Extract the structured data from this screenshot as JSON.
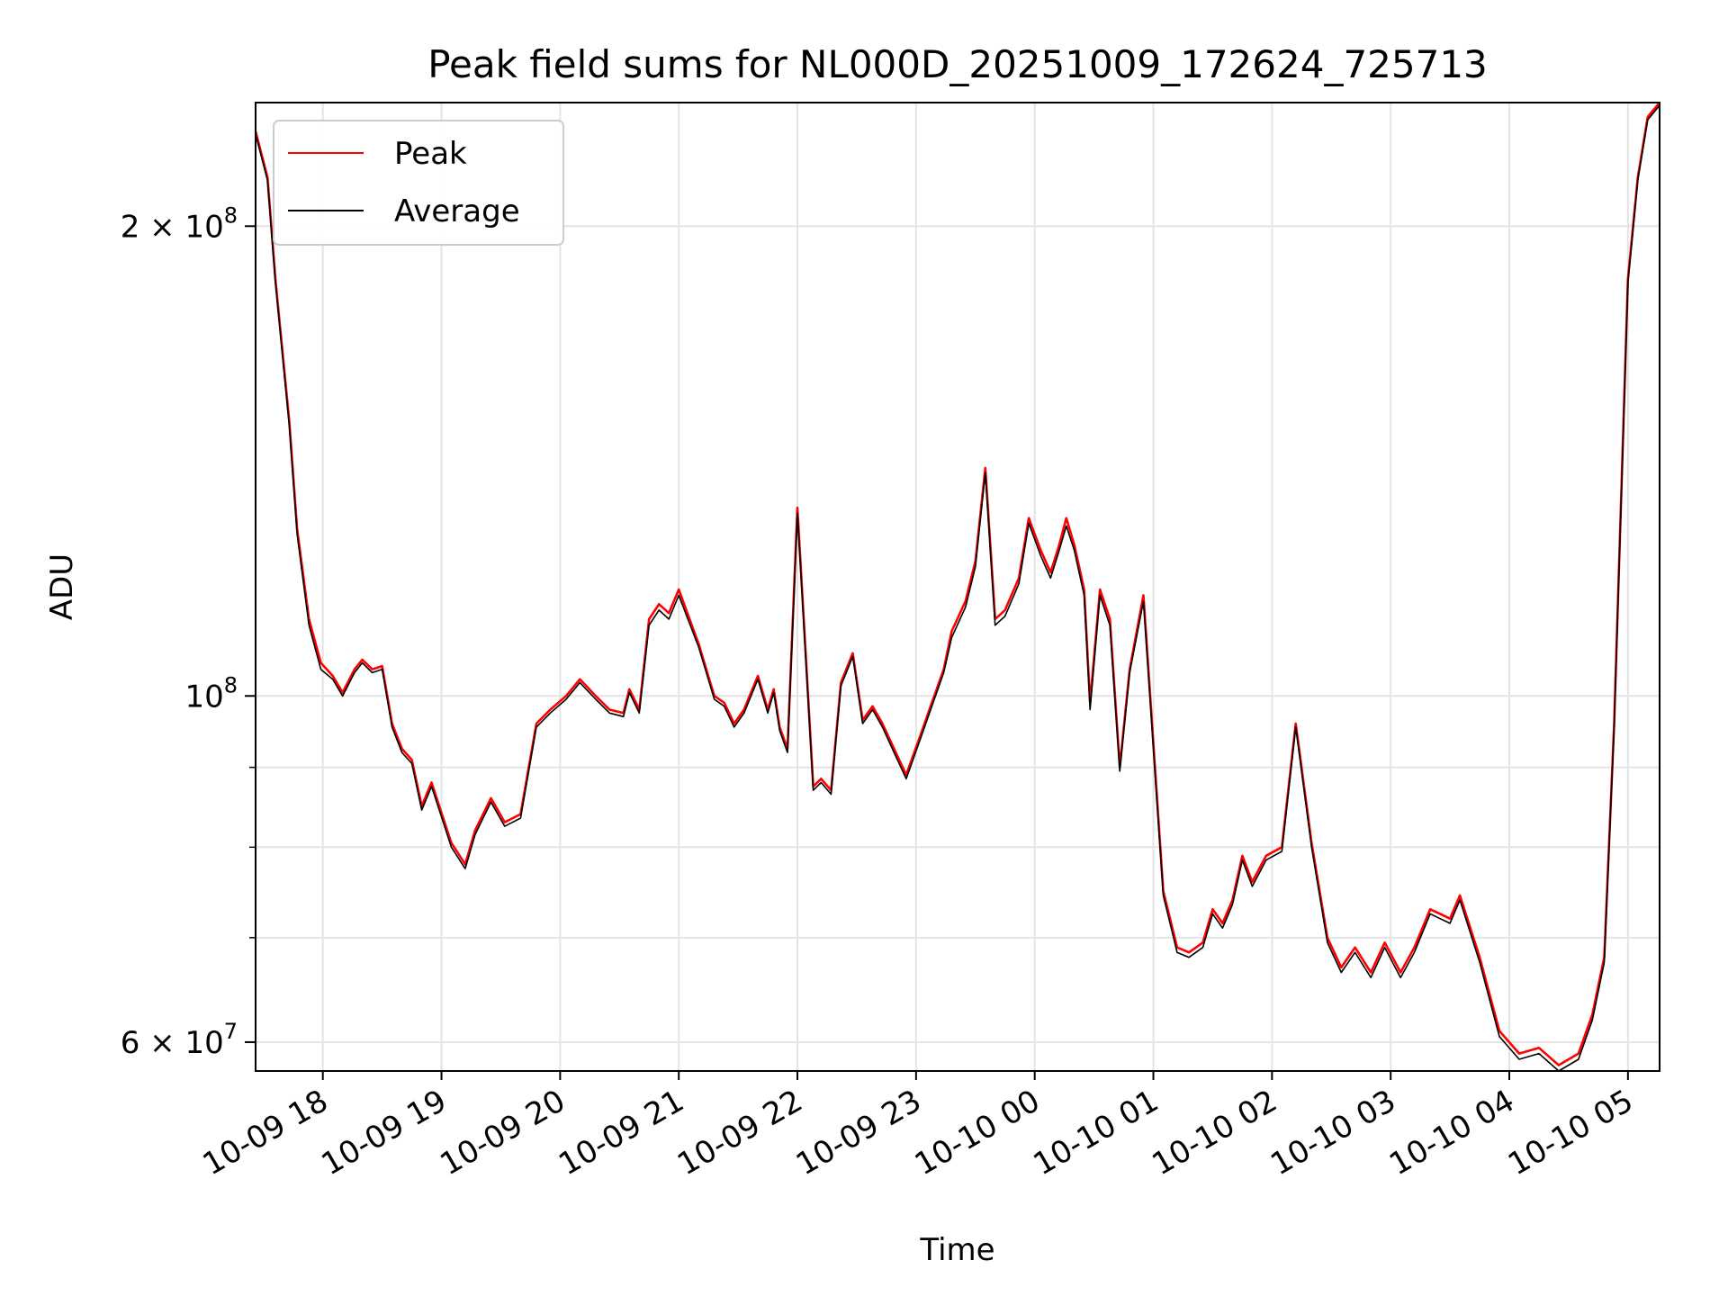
{
  "chart_data": {
    "type": "line",
    "title": "Peak field sums for NL000D_20251009_172624_725713",
    "xlabel": "Time",
    "ylabel": "ADU",
    "y_scale": "log",
    "grid": true,
    "legend_placement": "top-left",
    "xlim": [
      "2025-10-09 17:26",
      "2025-10-10 05:16"
    ],
    "ylim": [
      57500000,
      240000000
    ],
    "x_ticks": [
      "10-09 18",
      "10-09 19",
      "10-09 20",
      "10-09 21",
      "10-09 22",
      "10-09 23",
      "10-10 00",
      "10-10 01",
      "10-10 02",
      "10-10 03",
      "10-10 04",
      "10-10 05"
    ],
    "y_ticks": [
      {
        "value": 60000000,
        "base": "6 × 10",
        "exp": "7"
      },
      {
        "value": 100000000,
        "base": "10",
        "exp": "8"
      },
      {
        "value": 200000000,
        "base": "2 × 10",
        "exp": "8"
      }
    ],
    "series": [
      {
        "name": "Peak",
        "color": "#ff0000",
        "x": [
          "2025-10-09 17:26",
          "2025-10-09 17:32",
          "2025-10-09 17:36",
          "2025-10-09 17:43",
          "2025-10-09 17:47",
          "2025-10-09 17:53",
          "2025-10-09 17:59",
          "2025-10-09 18:05",
          "2025-10-09 18:10",
          "2025-10-09 18:16",
          "2025-10-09 18:20",
          "2025-10-09 18:25",
          "2025-10-09 18:30",
          "2025-10-09 18:35",
          "2025-10-09 18:40",
          "2025-10-09 18:45",
          "2025-10-09 18:50",
          "2025-10-09 18:55",
          "2025-10-09 19:05",
          "2025-10-09 19:12",
          "2025-10-09 19:17",
          "2025-10-09 19:25",
          "2025-10-09 19:32",
          "2025-10-09 19:40",
          "2025-10-09 19:48",
          "2025-10-09 19:55",
          "2025-10-09 20:03",
          "2025-10-09 20:10",
          "2025-10-09 20:18",
          "2025-10-09 20:25",
          "2025-10-09 20:32",
          "2025-10-09 20:35",
          "2025-10-09 20:40",
          "2025-10-09 20:45",
          "2025-10-09 20:50",
          "2025-10-09 20:55",
          "2025-10-09 21:00",
          "2025-10-09 21:10",
          "2025-10-09 21:18",
          "2025-10-09 21:23",
          "2025-10-09 21:28",
          "2025-10-09 21:33",
          "2025-10-09 21:40",
          "2025-10-09 21:45",
          "2025-10-09 21:48",
          "2025-10-09 21:51",
          "2025-10-09 21:55",
          "2025-10-09 22:00",
          "2025-10-09 22:08",
          "2025-10-09 22:12",
          "2025-10-09 22:17",
          "2025-10-09 22:22",
          "2025-10-09 22:28",
          "2025-10-09 22:33",
          "2025-10-09 22:38",
          "2025-10-09 22:43",
          "2025-10-09 22:48",
          "2025-10-09 22:55",
          "2025-10-09 23:03",
          "2025-10-09 23:08",
          "2025-10-09 23:14",
          "2025-10-09 23:18",
          "2025-10-09 23:25",
          "2025-10-09 23:30",
          "2025-10-09 23:35",
          "2025-10-09 23:40",
          "2025-10-09 23:45",
          "2025-10-09 23:52",
          "2025-10-09 23:57",
          "2025-10-10 00:03",
          "2025-10-10 00:08",
          "2025-10-10 00:12",
          "2025-10-10 00:16",
          "2025-10-10 00:20",
          "2025-10-10 00:25",
          "2025-10-10 00:28",
          "2025-10-10 00:33",
          "2025-10-10 00:38",
          "2025-10-10 00:43",
          "2025-10-10 00:48",
          "2025-10-10 00:55",
          "2025-10-10 01:05",
          "2025-10-10 01:12",
          "2025-10-10 01:18",
          "2025-10-10 01:25",
          "2025-10-10 01:30",
          "2025-10-10 01:35",
          "2025-10-10 01:40",
          "2025-10-10 01:45",
          "2025-10-10 01:50",
          "2025-10-10 01:57",
          "2025-10-10 02:05",
          "2025-10-10 02:12",
          "2025-10-10 02:20",
          "2025-10-10 02:28",
          "2025-10-10 02:35",
          "2025-10-10 02:42",
          "2025-10-10 02:50",
          "2025-10-10 02:57",
          "2025-10-10 03:05",
          "2025-10-10 03:12",
          "2025-10-10 03:20",
          "2025-10-10 03:25",
          "2025-10-10 03:30",
          "2025-10-10 03:35",
          "2025-10-10 03:45",
          "2025-10-10 03:55",
          "2025-10-10 04:05",
          "2025-10-10 04:15",
          "2025-10-10 04:25",
          "2025-10-10 04:35",
          "2025-10-10 04:42",
          "2025-10-10 04:48",
          "2025-10-10 04:53",
          "2025-10-10 04:57",
          "2025-10-10 05:00",
          "2025-10-10 05:05",
          "2025-10-10 05:10",
          "2025-10-10 05:16"
        ],
        "y": [
          230000000,
          215000000,
          185000000,
          150000000,
          128000000,
          112000000,
          105000000,
          103000000,
          100500000,
          104000000,
          105500000,
          104000000,
          104500000,
          96000000,
          92500000,
          91000000,
          85000000,
          88000000,
          80500000,
          78000000,
          82000000,
          86000000,
          83000000,
          84000000,
          96000000,
          98000000,
          100000000,
          102500000,
          100000000,
          98000000,
          97500000,
          101000000,
          98000000,
          112000000,
          114500000,
          113000000,
          117000000,
          108000000,
          100000000,
          99000000,
          96000000,
          98000000,
          103000000,
          98000000,
          101000000,
          95500000,
          92500000,
          132000000,
          87500000,
          88500000,
          87000000,
          102000000,
          106500000,
          96500000,
          98500000,
          96000000,
          93000000,
          89000000,
          95000000,
          99000000,
          104000000,
          110000000,
          115000000,
          122000000,
          140000000,
          112000000,
          113500000,
          119000000,
          130000000,
          124000000,
          120000000,
          124500000,
          130000000,
          125000000,
          117000000,
          99000000,
          117000000,
          112000000,
          90000000,
          104000000,
          116000000,
          75000000,
          69000000,
          68500000,
          69500000,
          73000000,
          71500000,
          74000000,
          79000000,
          76000000,
          79000000,
          80000000,
          96000000,
          80500000,
          70000000,
          67000000,
          69000000,
          66500000,
          69500000,
          66500000,
          69000000,
          73000000,
          72500000,
          72000000,
          74500000,
          68000000,
          61000000,
          59000000,
          59500000,
          58000000,
          59000000,
          62500000,
          68000000,
          96000000,
          140000000,
          185000000,
          215000000,
          235000000,
          240000000
        ]
      },
      {
        "name": "Average",
        "color": "#000000",
        "x": [
          "2025-10-09 17:26",
          "2025-10-09 17:32",
          "2025-10-09 17:36",
          "2025-10-09 17:43",
          "2025-10-09 17:47",
          "2025-10-09 17:53",
          "2025-10-09 17:59",
          "2025-10-09 18:05",
          "2025-10-09 18:10",
          "2025-10-09 18:16",
          "2025-10-09 18:20",
          "2025-10-09 18:25",
          "2025-10-09 18:30",
          "2025-10-09 18:35",
          "2025-10-09 18:40",
          "2025-10-09 18:45",
          "2025-10-09 18:50",
          "2025-10-09 18:55",
          "2025-10-09 19:05",
          "2025-10-09 19:12",
          "2025-10-09 19:17",
          "2025-10-09 19:25",
          "2025-10-09 19:32",
          "2025-10-09 19:40",
          "2025-10-09 19:48",
          "2025-10-09 19:55",
          "2025-10-09 20:03",
          "2025-10-09 20:10",
          "2025-10-09 20:18",
          "2025-10-09 20:25",
          "2025-10-09 20:32",
          "2025-10-09 20:35",
          "2025-10-09 20:40",
          "2025-10-09 20:45",
          "2025-10-09 20:50",
          "2025-10-09 20:55",
          "2025-10-09 21:00",
          "2025-10-09 21:10",
          "2025-10-09 21:18",
          "2025-10-09 21:23",
          "2025-10-09 21:28",
          "2025-10-09 21:33",
          "2025-10-09 21:40",
          "2025-10-09 21:45",
          "2025-10-09 21:48",
          "2025-10-09 21:51",
          "2025-10-09 21:55",
          "2025-10-09 22:00",
          "2025-10-09 22:08",
          "2025-10-09 22:12",
          "2025-10-09 22:17",
          "2025-10-09 22:22",
          "2025-10-09 22:28",
          "2025-10-09 22:33",
          "2025-10-09 22:38",
          "2025-10-09 22:43",
          "2025-10-09 22:48",
          "2025-10-09 22:55",
          "2025-10-09 23:03",
          "2025-10-09 23:08",
          "2025-10-09 23:14",
          "2025-10-09 23:18",
          "2025-10-09 23:25",
          "2025-10-09 23:30",
          "2025-10-09 23:35",
          "2025-10-09 23:40",
          "2025-10-09 23:45",
          "2025-10-09 23:52",
          "2025-10-09 23:57",
          "2025-10-10 00:03",
          "2025-10-10 00:08",
          "2025-10-10 00:12",
          "2025-10-10 00:16",
          "2025-10-10 00:20",
          "2025-10-10 00:25",
          "2025-10-10 00:28",
          "2025-10-10 00:33",
          "2025-10-10 00:38",
          "2025-10-10 00:43",
          "2025-10-10 00:48",
          "2025-10-10 00:55",
          "2025-10-10 01:05",
          "2025-10-10 01:12",
          "2025-10-10 01:18",
          "2025-10-10 01:25",
          "2025-10-10 01:30",
          "2025-10-10 01:35",
          "2025-10-10 01:40",
          "2025-10-10 01:45",
          "2025-10-10 01:50",
          "2025-10-10 01:57",
          "2025-10-10 02:05",
          "2025-10-10 02:12",
          "2025-10-10 02:20",
          "2025-10-10 02:28",
          "2025-10-10 02:35",
          "2025-10-10 02:42",
          "2025-10-10 02:50",
          "2025-10-10 02:57",
          "2025-10-10 03:05",
          "2025-10-10 03:12",
          "2025-10-10 03:20",
          "2025-10-10 03:25",
          "2025-10-10 03:30",
          "2025-10-10 03:35",
          "2025-10-10 03:45",
          "2025-10-10 03:55",
          "2025-10-10 04:05",
          "2025-10-10 04:15",
          "2025-10-10 04:25",
          "2025-10-10 04:35",
          "2025-10-10 04:42",
          "2025-10-10 04:48",
          "2025-10-10 04:53",
          "2025-10-10 04:57",
          "2025-10-10 05:00",
          "2025-10-10 05:05",
          "2025-10-10 05:10",
          "2025-10-10 05:16"
        ],
        "y": [
          229000000,
          214000000,
          184000000,
          149000000,
          127000000,
          111000000,
          104000000,
          102500000,
          100000000,
          103500000,
          105000000,
          103500000,
          104000000,
          95500000,
          92000000,
          90500000,
          84500000,
          87500000,
          80000000,
          77500000,
          81500000,
          85500000,
          82500000,
          83500000,
          95500000,
          97500000,
          99500000,
          102000000,
          99500000,
          97500000,
          97000000,
          100500000,
          97500000,
          111000000,
          113500000,
          112000000,
          116000000,
          107500000,
          99500000,
          98500000,
          95500000,
          97500000,
          102500000,
          97500000,
          100500000,
          95000000,
          92000000,
          131000000,
          87000000,
          88000000,
          86500000,
          101500000,
          106000000,
          96000000,
          98000000,
          95500000,
          92500000,
          88500000,
          94500000,
          98500000,
          103500000,
          109000000,
          114000000,
          121000000,
          139000000,
          111000000,
          112500000,
          118000000,
          129000000,
          123000000,
          119000000,
          123500000,
          128500000,
          124000000,
          116000000,
          98000000,
          116000000,
          111000000,
          89500000,
          103500000,
          115000000,
          74500000,
          68500000,
          68000000,
          69000000,
          72500000,
          71000000,
          73500000,
          78500000,
          75500000,
          78500000,
          79500000,
          95500000,
          80000000,
          69500000,
          66500000,
          68500000,
          66000000,
          69000000,
          66000000,
          68500000,
          72500000,
          72000000,
          71500000,
          74000000,
          67500000,
          60500000,
          58500000,
          59000000,
          57500000,
          58500000,
          62000000,
          67500000,
          95500000,
          139000000,
          184000000,
          214000000,
          234000000,
          239000000
        ]
      }
    ]
  }
}
